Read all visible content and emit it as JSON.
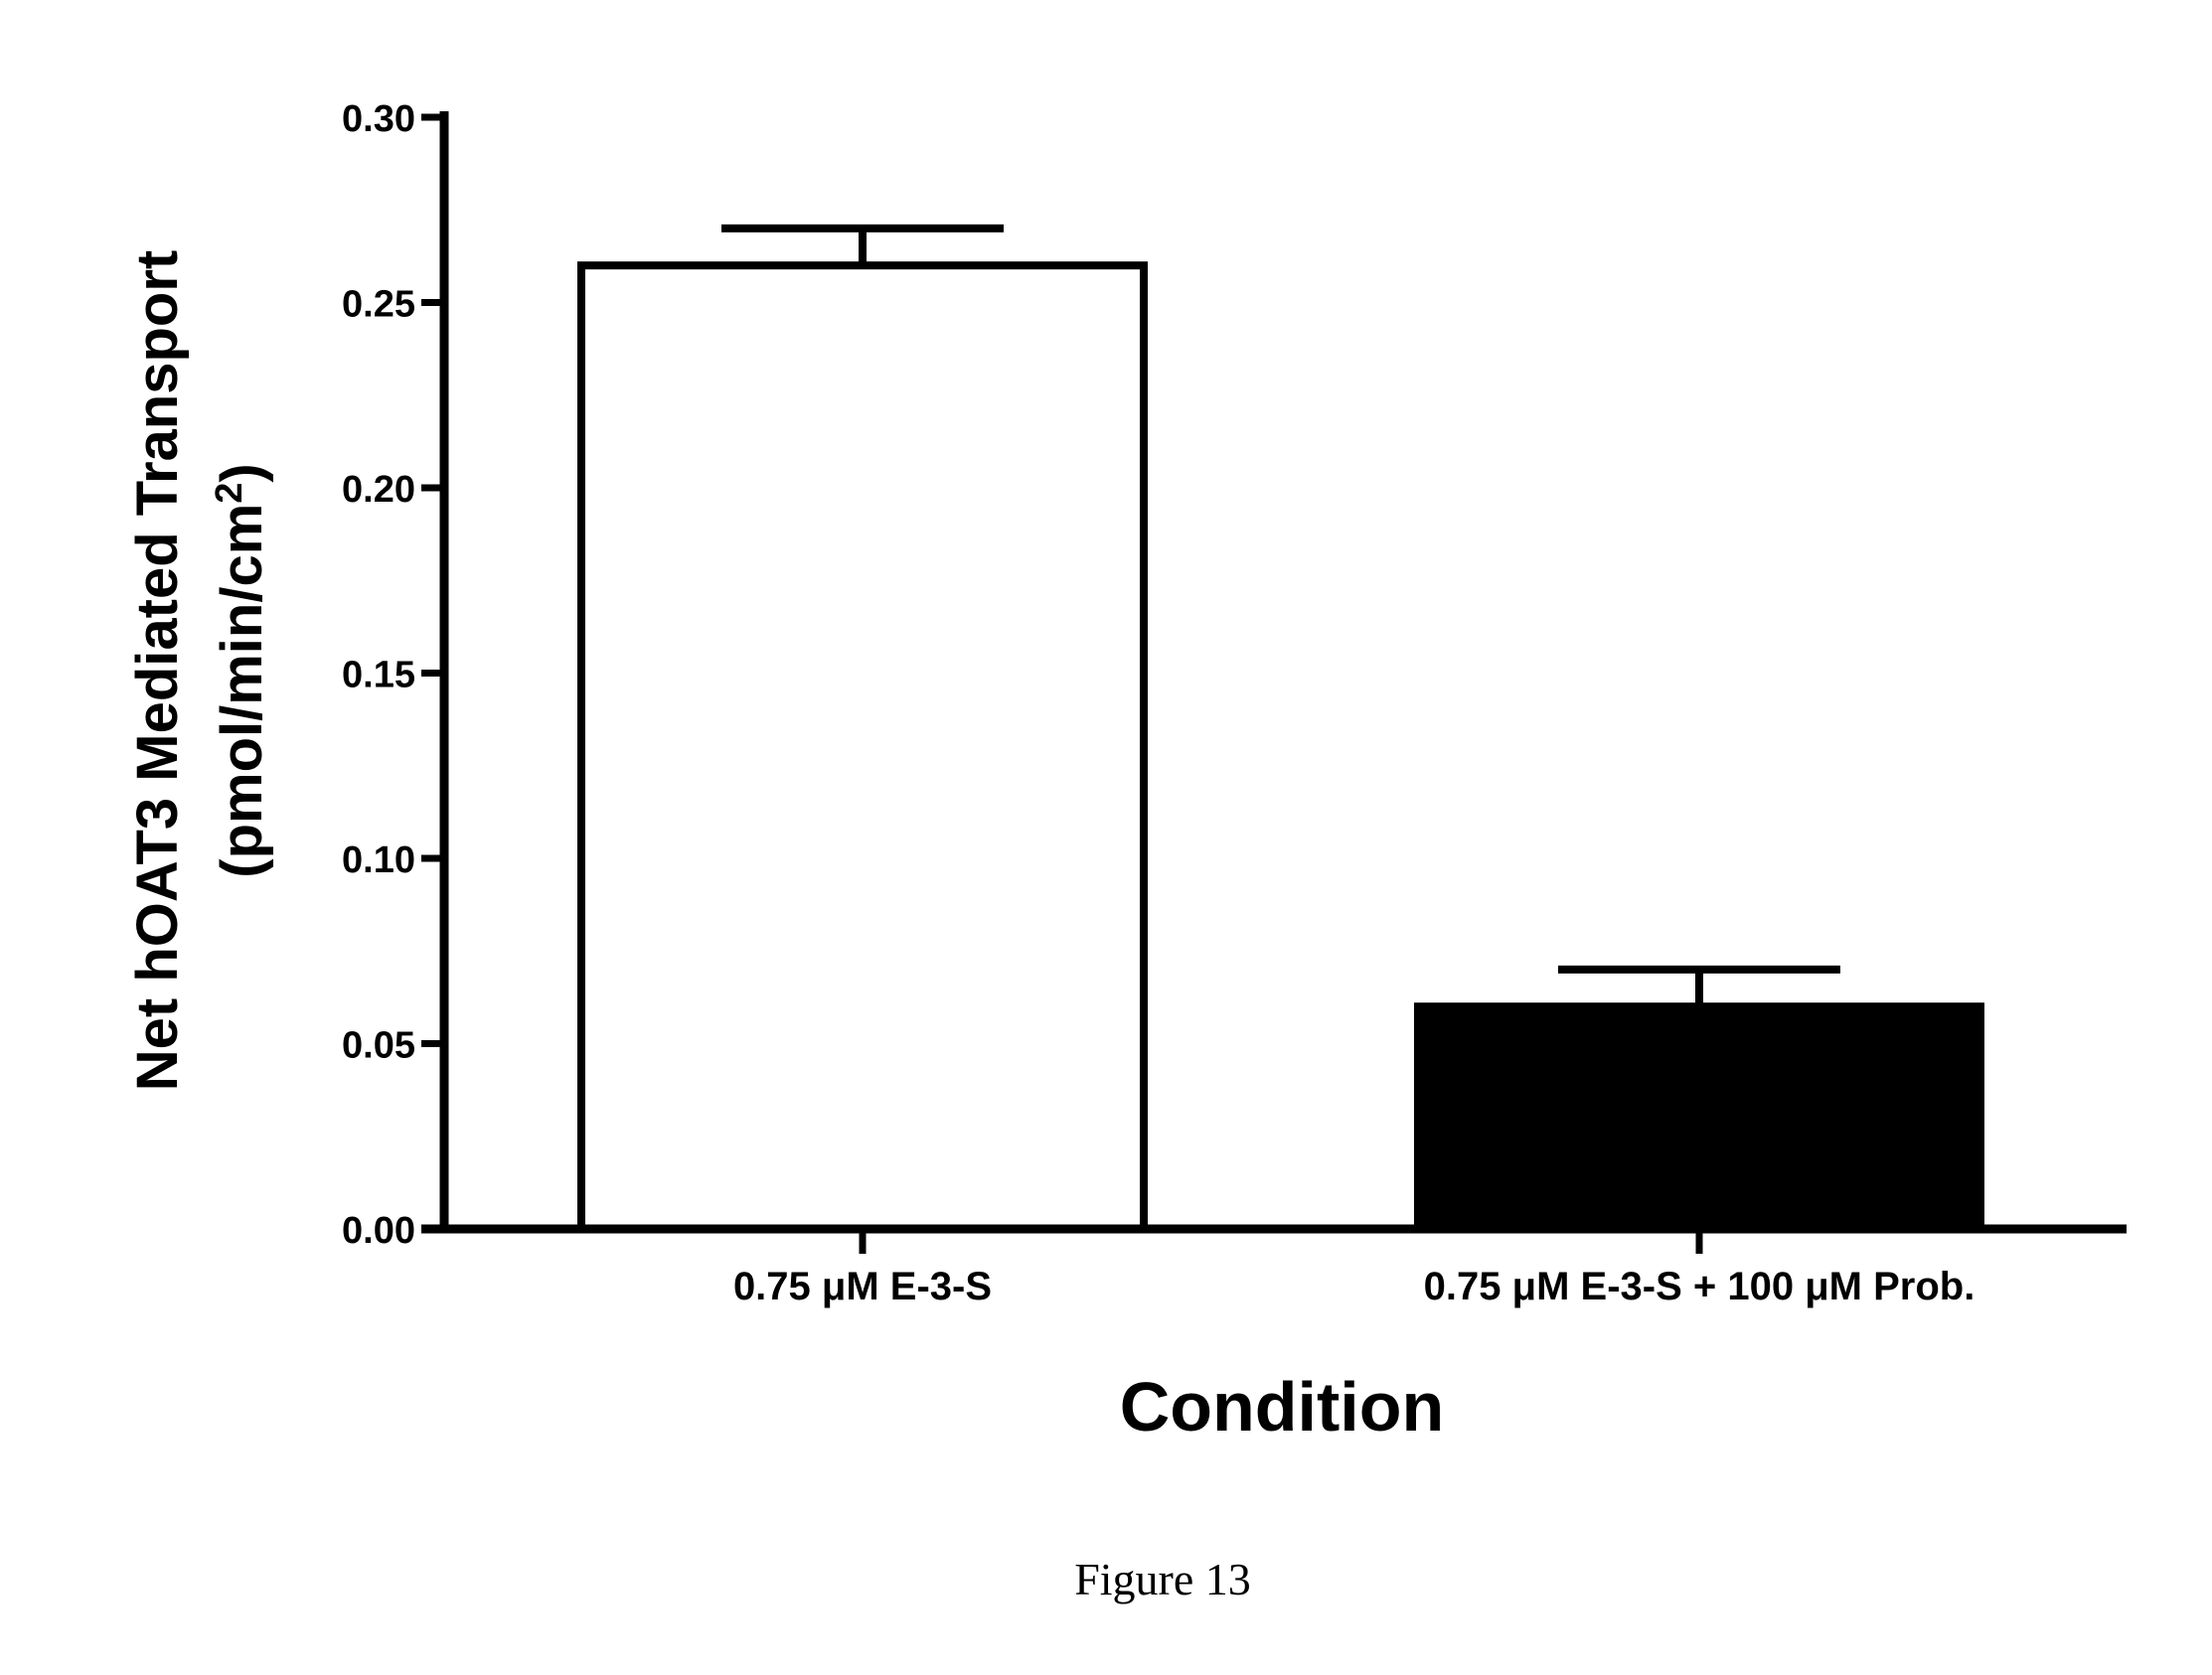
{
  "chart_data": {
    "type": "bar",
    "categories": [
      "0.75 μM E-3-S",
      "0.75 μM E-3-S + 100 μM Prob."
    ],
    "values": [
      0.26,
      0.06
    ],
    "error": [
      0.01,
      0.01
    ],
    "fills": [
      "#ffffff",
      "#000000"
    ],
    "ylabel_line1": "Net hOAT3 Mediated Transport",
    "ylabel_line2": "(pmol/min/cm",
    "ylabel_sup": "2",
    "ylabel_close": ")",
    "xlabel": "Condition",
    "ylim": [
      0,
      0.3
    ],
    "yticks": [
      "0.00",
      "0.05",
      "0.10",
      "0.15",
      "0.20",
      "0.25",
      "0.30"
    ],
    "grid": false
  },
  "caption": "Figure 13"
}
